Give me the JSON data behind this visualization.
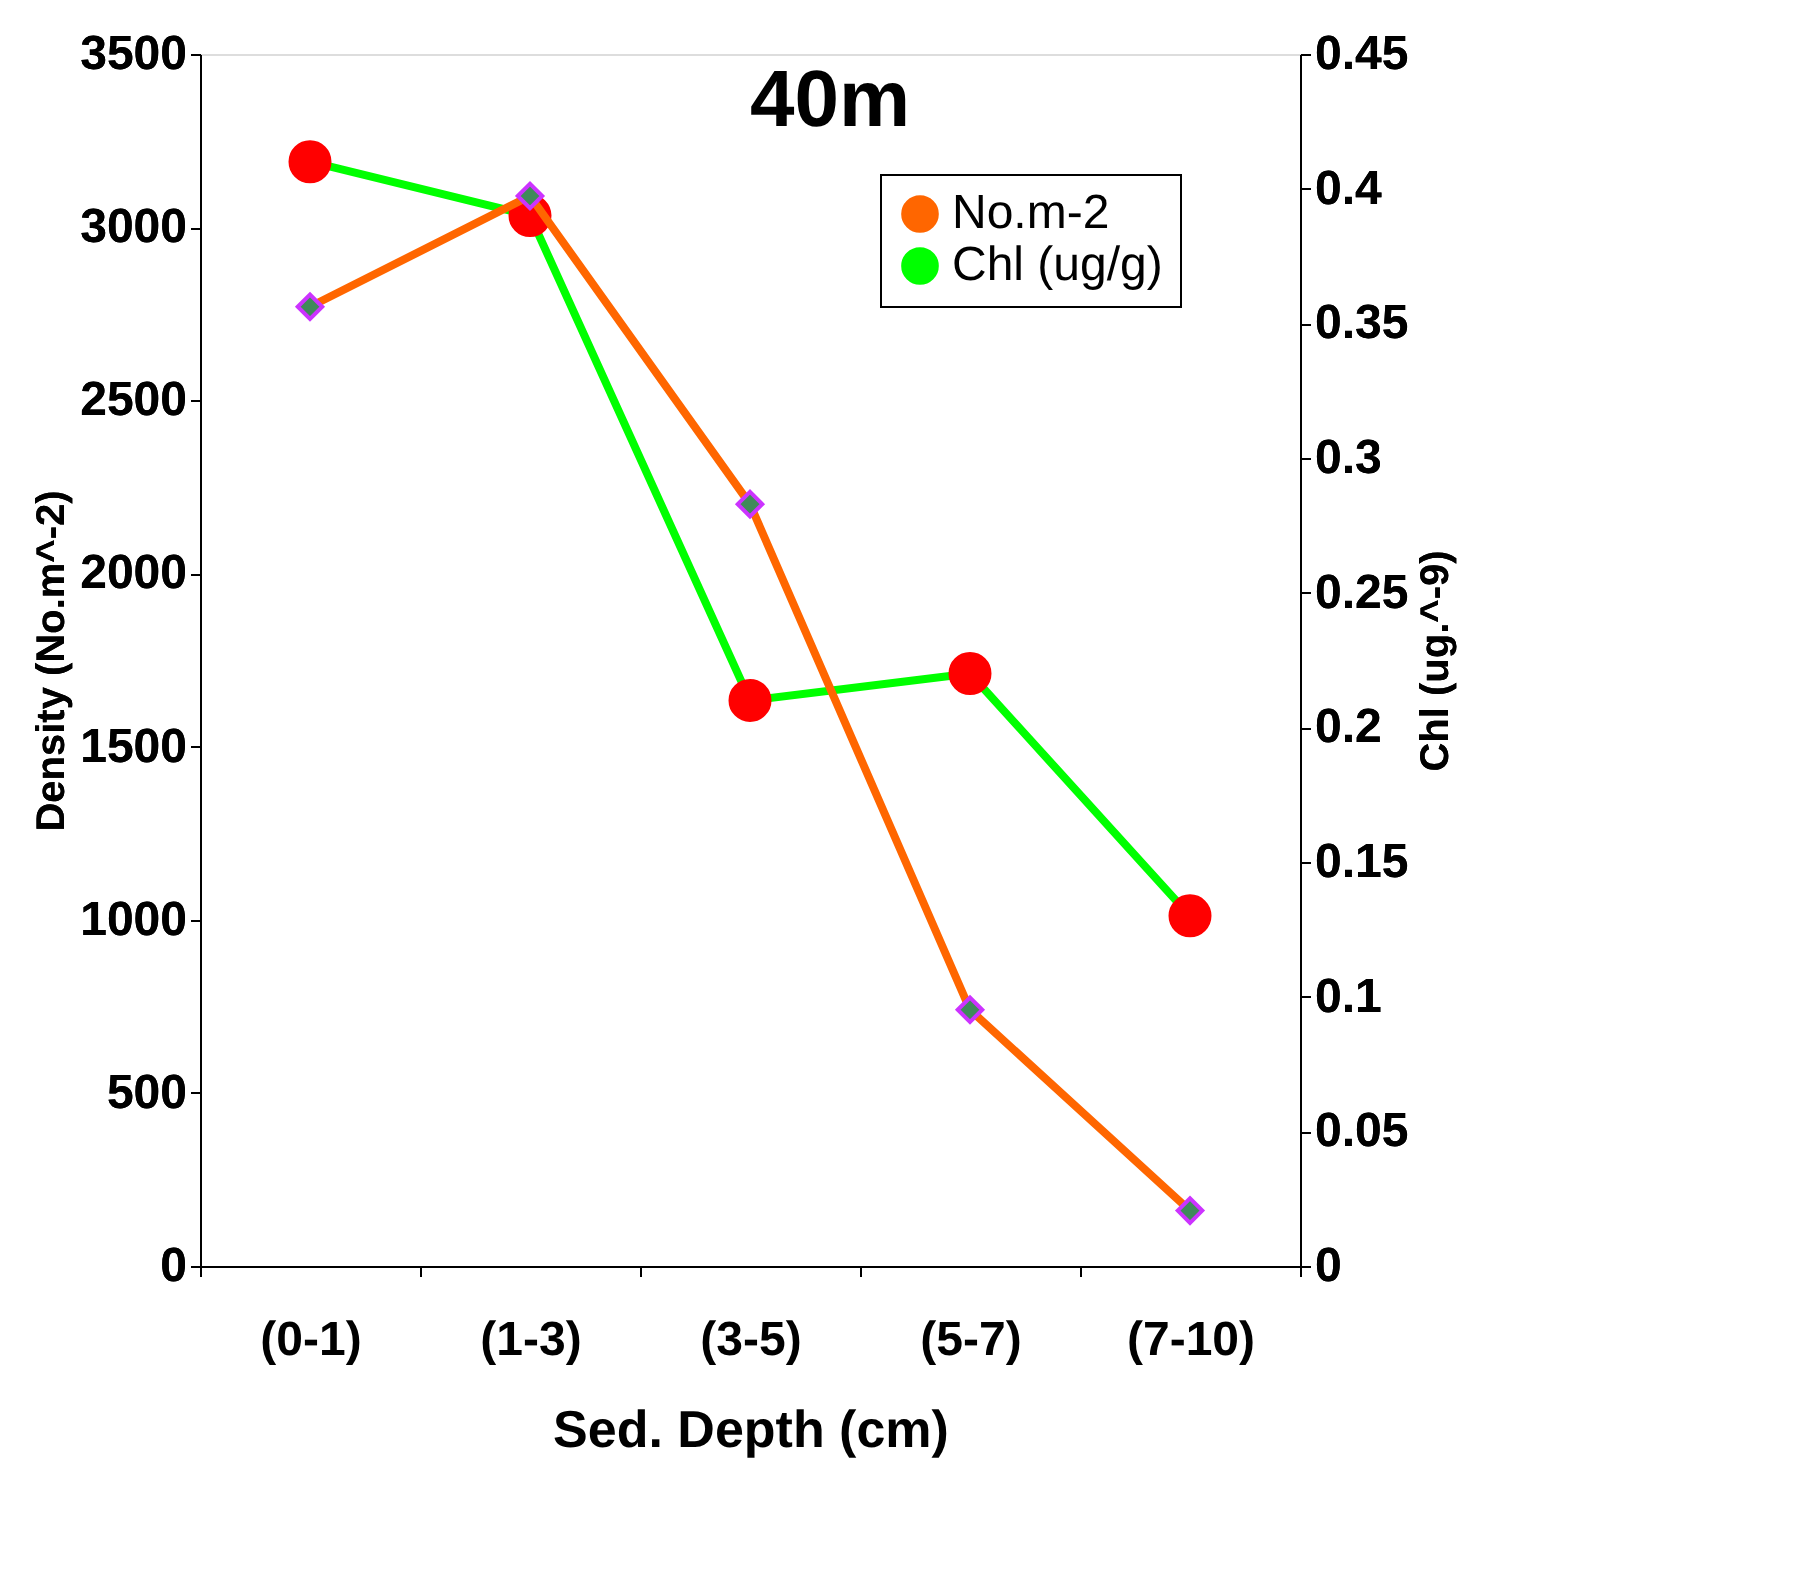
{
  "chart_data": {
    "type": "line",
    "title": "40m",
    "xlabel": "Sed. Depth (cm)",
    "ylabel": "Density (No.m^-2)",
    "y2label": "Chl (ug.^-9)",
    "categories": [
      "(0-1)",
      "(1-3)",
      "(3-5)",
      "(5-7)",
      "(7-10)"
    ],
    "series": [
      {
        "name": "No.m-2",
        "color": "#ff6600",
        "marker": "diamond",
        "values": [
          2770,
          3090,
          2200,
          740,
          160
        ]
      },
      {
        "name": "Chl (ug/g)",
        "color": "#00ff00",
        "marker": "circle",
        "axis": "y2",
        "values": [
          0.41,
          0.39,
          0.21,
          0.22,
          0.13
        ]
      }
    ],
    "ylim": [
      0,
      3500
    ],
    "yticks": [
      0,
      500,
      1000,
      1500,
      2000,
      2500,
      3000,
      3500
    ],
    "y2lim": [
      0,
      0.45
    ],
    "y2ticks": [
      0,
      0.05,
      0.1,
      0.15,
      0.2,
      0.25,
      0.3,
      0.35,
      0.4,
      0.45
    ],
    "grid": false,
    "legend": "top right"
  }
}
